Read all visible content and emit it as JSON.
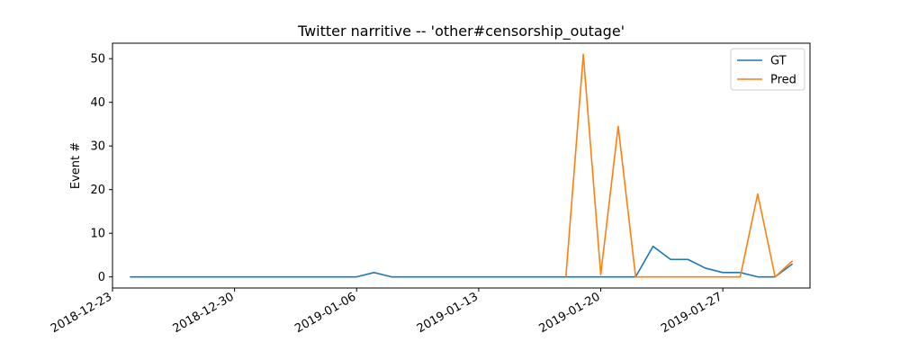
{
  "chart_data": {
    "type": "line",
    "title": "Twitter narritive -- 'other#censorship_outage'",
    "xlabel": "",
    "ylabel": "Event #",
    "x": [
      "2018-12-24",
      "2018-12-25",
      "2018-12-26",
      "2018-12-27",
      "2018-12-28",
      "2018-12-29",
      "2018-12-30",
      "2018-12-31",
      "2019-01-01",
      "2019-01-02",
      "2019-01-03",
      "2019-01-04",
      "2019-01-05",
      "2019-01-06",
      "2019-01-07",
      "2019-01-08",
      "2019-01-09",
      "2019-01-10",
      "2019-01-11",
      "2019-01-12",
      "2019-01-13",
      "2019-01-14",
      "2019-01-15",
      "2019-01-16",
      "2019-01-17",
      "2019-01-18",
      "2019-01-19",
      "2019-01-20",
      "2019-01-21",
      "2019-01-22",
      "2019-01-23",
      "2019-01-24",
      "2019-01-25",
      "2019-01-26",
      "2019-01-27",
      "2019-01-28",
      "2019-01-29",
      "2019-01-30",
      "2019-01-31"
    ],
    "series": [
      {
        "name": "GT",
        "color": "#1f77b4",
        "values": [
          0,
          0,
          0,
          0,
          0,
          0,
          0,
          0,
          0,
          0,
          0,
          0,
          0,
          0,
          1,
          0,
          0,
          0,
          0,
          0,
          0,
          0,
          0,
          0,
          0,
          0,
          0,
          0,
          0,
          0,
          7,
          4,
          4,
          2,
          1,
          1,
          0,
          0,
          3
        ]
      },
      {
        "name": "Pred",
        "color": "#ff7f0e",
        "values": [
          null,
          null,
          null,
          null,
          null,
          null,
          null,
          null,
          null,
          null,
          null,
          null,
          null,
          null,
          null,
          null,
          null,
          null,
          null,
          null,
          null,
          null,
          null,
          null,
          null,
          0,
          51,
          0.5,
          34.5,
          0,
          0,
          0,
          0,
          0,
          0,
          0,
          19,
          0,
          3.7
        ]
      }
    ],
    "xticks": [
      "2018-12-23",
      "2018-12-30",
      "2019-01-06",
      "2019-01-13",
      "2019-01-20",
      "2019-01-27"
    ],
    "yticks": [
      0,
      10,
      20,
      30,
      40,
      50
    ],
    "xlim": [
      "2018-12-23",
      "2019-02-01"
    ],
    "ylim": [
      -2.55,
      53.55
    ],
    "legend": "top-right",
    "grid": false
  }
}
